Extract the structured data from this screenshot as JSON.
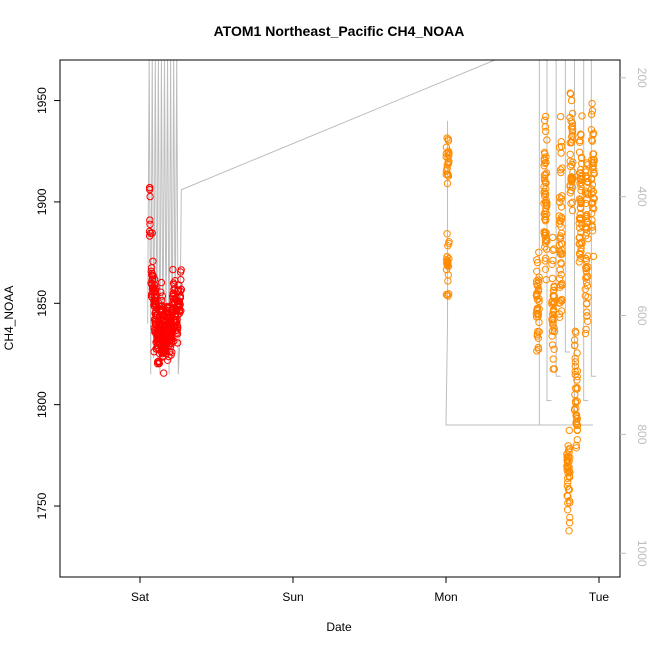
{
  "chart_data": {
    "type": "scatter",
    "title": "ATOM1 Northeast_Pacific CH4_NOAA",
    "xlabel": "Date",
    "ylabel": "CH4_NOAA",
    "x_ticks": [
      "Sat",
      "Sun",
      "Mon",
      "Tue"
    ],
    "y_ticks": [
      1750,
      1800,
      1850,
      1900,
      1950
    ],
    "y_right_ticks": [
      200,
      400,
      600,
      800,
      1000
    ],
    "ylim": [
      1715,
      1970
    ],
    "y_right_lim": [
      170,
      1040
    ],
    "grid": false,
    "colors": {
      "series1": "#ff0000",
      "series2": "#ff8c00",
      "line": "#bdbdbd",
      "right_axis": "#bdbdbd"
    },
    "series": [
      {
        "color": "#ff0000",
        "marker": "open-circle",
        "clusters": [
          {
            "x": 0.06,
            "y": 1905,
            "spread": 4,
            "n": 4
          },
          {
            "x": 0.07,
            "y": 1885,
            "spread": 5,
            "n": 6
          },
          {
            "x": 0.08,
            "y": 1860,
            "spread": 8,
            "n": 20
          },
          {
            "x": 0.1,
            "y": 1845,
            "spread": 14,
            "n": 40
          },
          {
            "x": 0.12,
            "y": 1835,
            "spread": 12,
            "n": 40
          },
          {
            "x": 0.14,
            "y": 1840,
            "spread": 14,
            "n": 40
          },
          {
            "x": 0.16,
            "y": 1830,
            "spread": 10,
            "n": 40
          },
          {
            "x": 0.18,
            "y": 1840,
            "spread": 12,
            "n": 35
          },
          {
            "x": 0.2,
            "y": 1835,
            "spread": 10,
            "n": 35
          },
          {
            "x": 0.22,
            "y": 1850,
            "spread": 12,
            "n": 30
          },
          {
            "x": 0.24,
            "y": 1845,
            "spread": 10,
            "n": 25
          },
          {
            "x": 0.26,
            "y": 1855,
            "spread": 10,
            "n": 20
          }
        ]
      },
      {
        "color": "#ff8c00",
        "marker": "open-circle",
        "clusters": [
          {
            "x": 2.01,
            "y": 1920,
            "spread": 10,
            "n": 25
          },
          {
            "x": 2.01,
            "y": 1870,
            "spread": 12,
            "n": 25
          },
          {
            "x": 2.6,
            "y": 1850,
            "spread": 18,
            "n": 40
          },
          {
            "x": 2.65,
            "y": 1900,
            "spread": 30,
            "n": 60
          },
          {
            "x": 2.7,
            "y": 1850,
            "spread": 25,
            "n": 40
          },
          {
            "x": 2.75,
            "y": 1880,
            "spread": 40,
            "n": 50
          },
          {
            "x": 2.8,
            "y": 1760,
            "spread": 20,
            "n": 40
          },
          {
            "x": 2.82,
            "y": 1920,
            "spread": 25,
            "n": 40
          },
          {
            "x": 2.85,
            "y": 1800,
            "spread": 30,
            "n": 40
          },
          {
            "x": 2.88,
            "y": 1900,
            "spread": 35,
            "n": 50
          },
          {
            "x": 2.92,
            "y": 1880,
            "spread": 40,
            "n": 50
          },
          {
            "x": 2.96,
            "y": 1910,
            "spread": 30,
            "n": 40
          }
        ]
      }
    ]
  }
}
